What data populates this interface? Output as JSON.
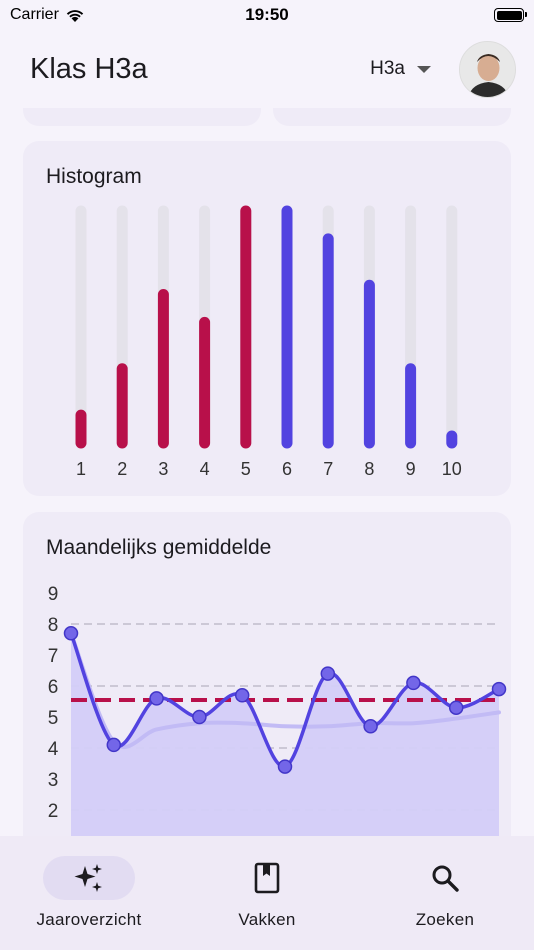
{
  "status_bar": {
    "carrier": "Carrier",
    "time": "19:50"
  },
  "header": {
    "title": "Klas H3a",
    "class_selector": "H3a"
  },
  "histogram": {
    "title": "Histogram",
    "chart_data": {
      "type": "bar",
      "categories": [
        "1",
        "2",
        "3",
        "4",
        "5",
        "6",
        "7",
        "8",
        "9",
        "10"
      ],
      "values": [
        0.12,
        0.32,
        0.64,
        0.52,
        1.0,
        1.0,
        0.88,
        0.68,
        0.32,
        0.03
      ],
      "ylim": [
        0,
        1
      ],
      "colors": {
        "low": "#b8104a",
        "high": "#5243e0",
        "track": "#e4e2ea"
      }
    }
  },
  "monthly": {
    "title": "Maandelijks gemiddelde",
    "chart_data": {
      "type": "line",
      "y_ticks": [
        "9",
        "8",
        "7",
        "6",
        "5",
        "4",
        "3",
        "2"
      ],
      "ylim": [
        1.6,
        9
      ],
      "series": [
        {
          "values": [
            7.7,
            4.1,
            5.6,
            5.0,
            5.7,
            3.4,
            6.4,
            4.7,
            6.1,
            5.3,
            5.9
          ],
          "color": "#5243e0"
        },
        {
          "values": [
            7.7,
            4.2,
            4.6,
            4.8,
            4.8,
            4.7,
            4.7,
            4.8,
            4.8,
            4.95,
            5.15
          ],
          "color": "#c2bbf5"
        }
      ],
      "reference_line": {
        "value": 5.55,
        "color": "#b8104a"
      },
      "grid": true
    }
  },
  "nav": [
    {
      "label": "Jaaroverzicht",
      "icon": "sparkle-icon",
      "active": true
    },
    {
      "label": "Vakken",
      "icon": "book-icon",
      "active": false
    },
    {
      "label": "Zoeken",
      "icon": "search-icon",
      "active": false
    }
  ]
}
